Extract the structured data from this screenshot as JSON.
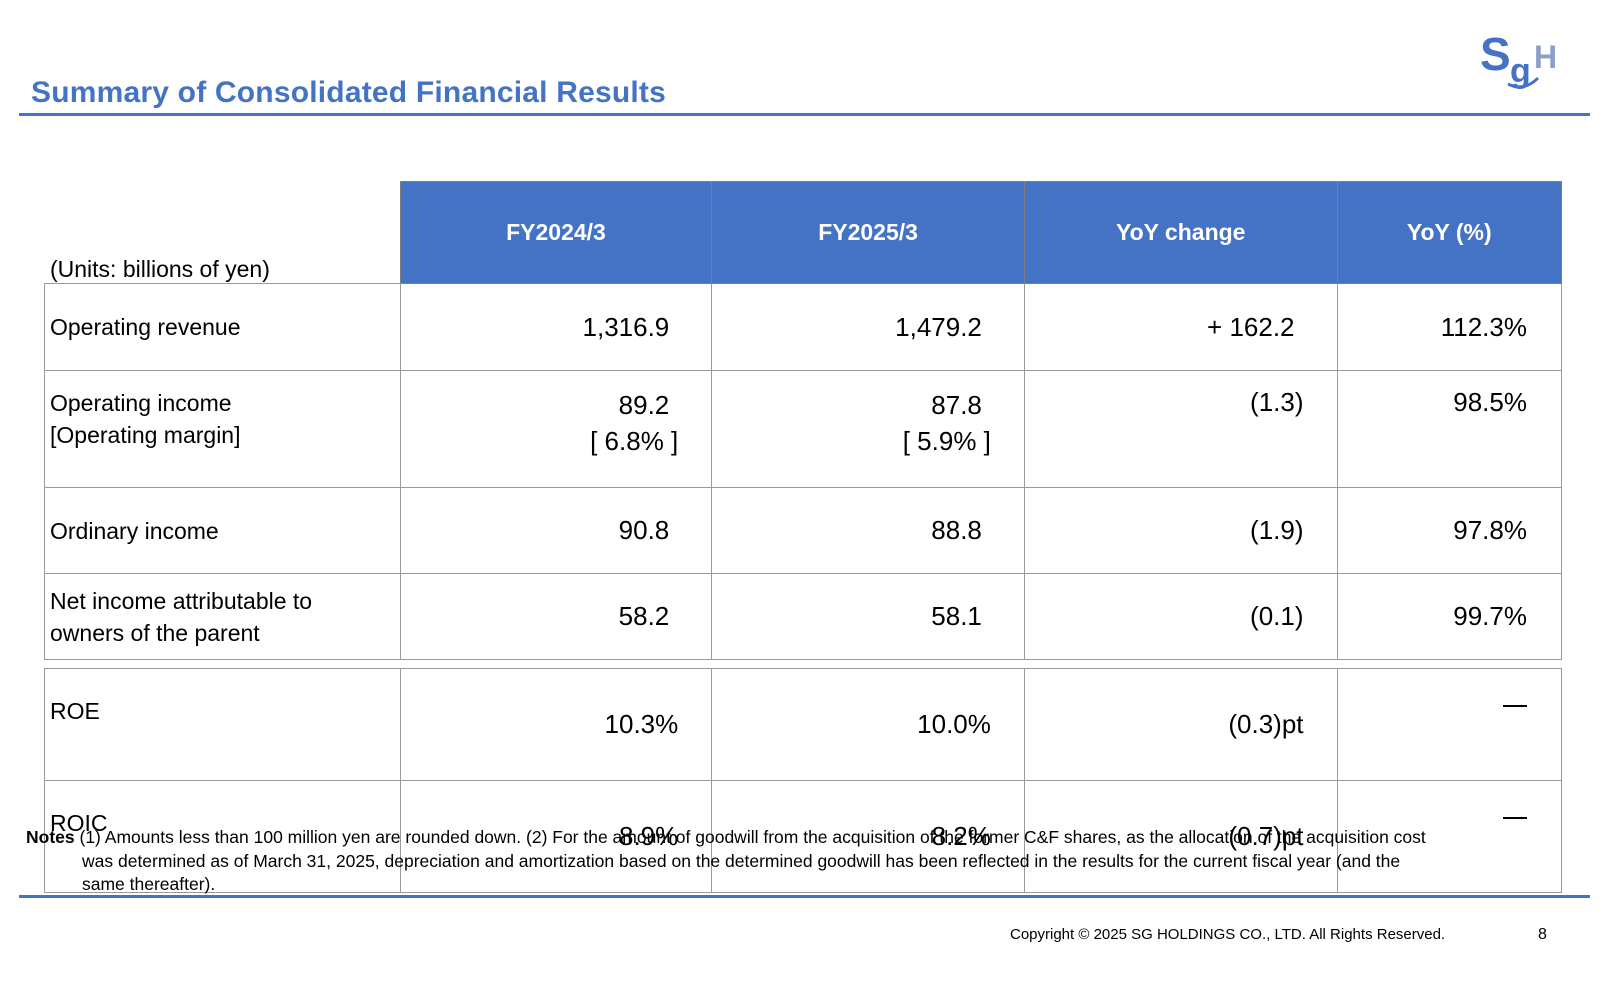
{
  "header": {
    "title": "Summary of Consolidated Financial Results",
    "logo_text": "SGH"
  },
  "table": {
    "units": "(Units: billions of yen)",
    "columns": [
      "FY2024/3",
      "FY2025/3",
      "YoY change",
      "YoY (%)"
    ],
    "rows": [
      {
        "label": "Operating revenue",
        "fy2024": "1,316.9",
        "fy2025": "1,479.2",
        "yoy_change": "+ 162.2",
        "yoy_pct": "112.3%"
      },
      {
        "label_line1": "Operating income",
        "label_line2": "[Operating margin]",
        "fy2024": "89.2",
        "fy2024_margin": "[ 6.8% ]",
        "fy2025": "87.8",
        "fy2025_margin": "[ 5.9% ]",
        "yoy_change": "(1.3)",
        "yoy_pct": "98.5%"
      },
      {
        "label": "Ordinary income",
        "fy2024": "90.8",
        "fy2025": "88.8",
        "yoy_change": "(1.9)",
        "yoy_pct": "97.8%"
      },
      {
        "label_line1": "Net income attributable to",
        "label_line2": "owners of the parent",
        "fy2024": "58.2",
        "fy2025": "58.1",
        "yoy_change": "(0.1)",
        "yoy_pct": "99.7%"
      },
      {
        "label": "ROE",
        "fy2024": "10.3%",
        "fy2025": "10.0%",
        "yoy_change": "(0.3)pt",
        "yoy_pct": "—"
      },
      {
        "label": "ROIC",
        "fy2024": "8.9%",
        "fy2025": "8.2%",
        "yoy_change": "(0.7)pt",
        "yoy_pct": "—"
      }
    ]
  },
  "notes": {
    "label": "Notes",
    "line1": "(1) Amounts less than 100 million yen are rounded down. (2) For the amount of goodwill from the acquisition of the former C&F shares, as the allocation of the acquisition cost",
    "line2": "was determined as of March 31, 2025, depreciation and amortization based on the determined goodwill has been reflected in the results for the current fiscal year (and the",
    "line3": "same thereafter)."
  },
  "footer": {
    "copyright": "Copyright © 2025 SG HOLDINGS CO., LTD.  All Rights Reserved.",
    "page_number": "8"
  },
  "colors": {
    "accent": "#4472C4",
    "header_text": "#FFFFFF"
  }
}
